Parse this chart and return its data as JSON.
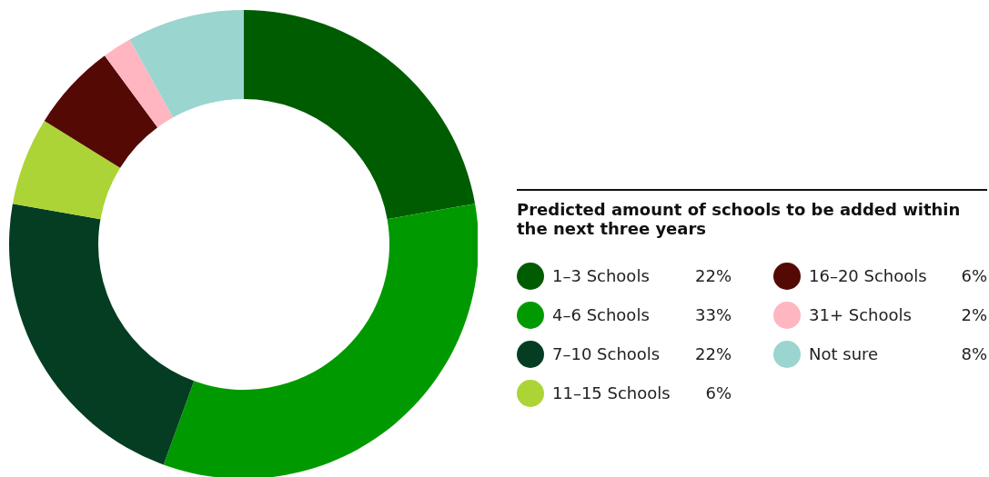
{
  "chart_data": {
    "type": "donut",
    "legend_title": "Predicted amount of schools to be added within the next three years",
    "categories": [
      "1–3 Schools",
      "4–6 Schools",
      "7–10 Schools",
      "11–15 Schools",
      "16–20 Schools",
      "31+ Schools",
      "Not sure"
    ],
    "values": [
      22,
      33,
      22,
      6,
      6,
      2,
      8
    ],
    "value_labels": [
      "22%",
      "33%",
      "22%",
      "6%",
      "6%",
      "2%",
      "8%"
    ],
    "colors": [
      "#005c00",
      "#009a00",
      "#053d23",
      "#acd436",
      "#540904",
      "#ffb6c1",
      "#9ad5cf"
    ],
    "legend": "right"
  }
}
